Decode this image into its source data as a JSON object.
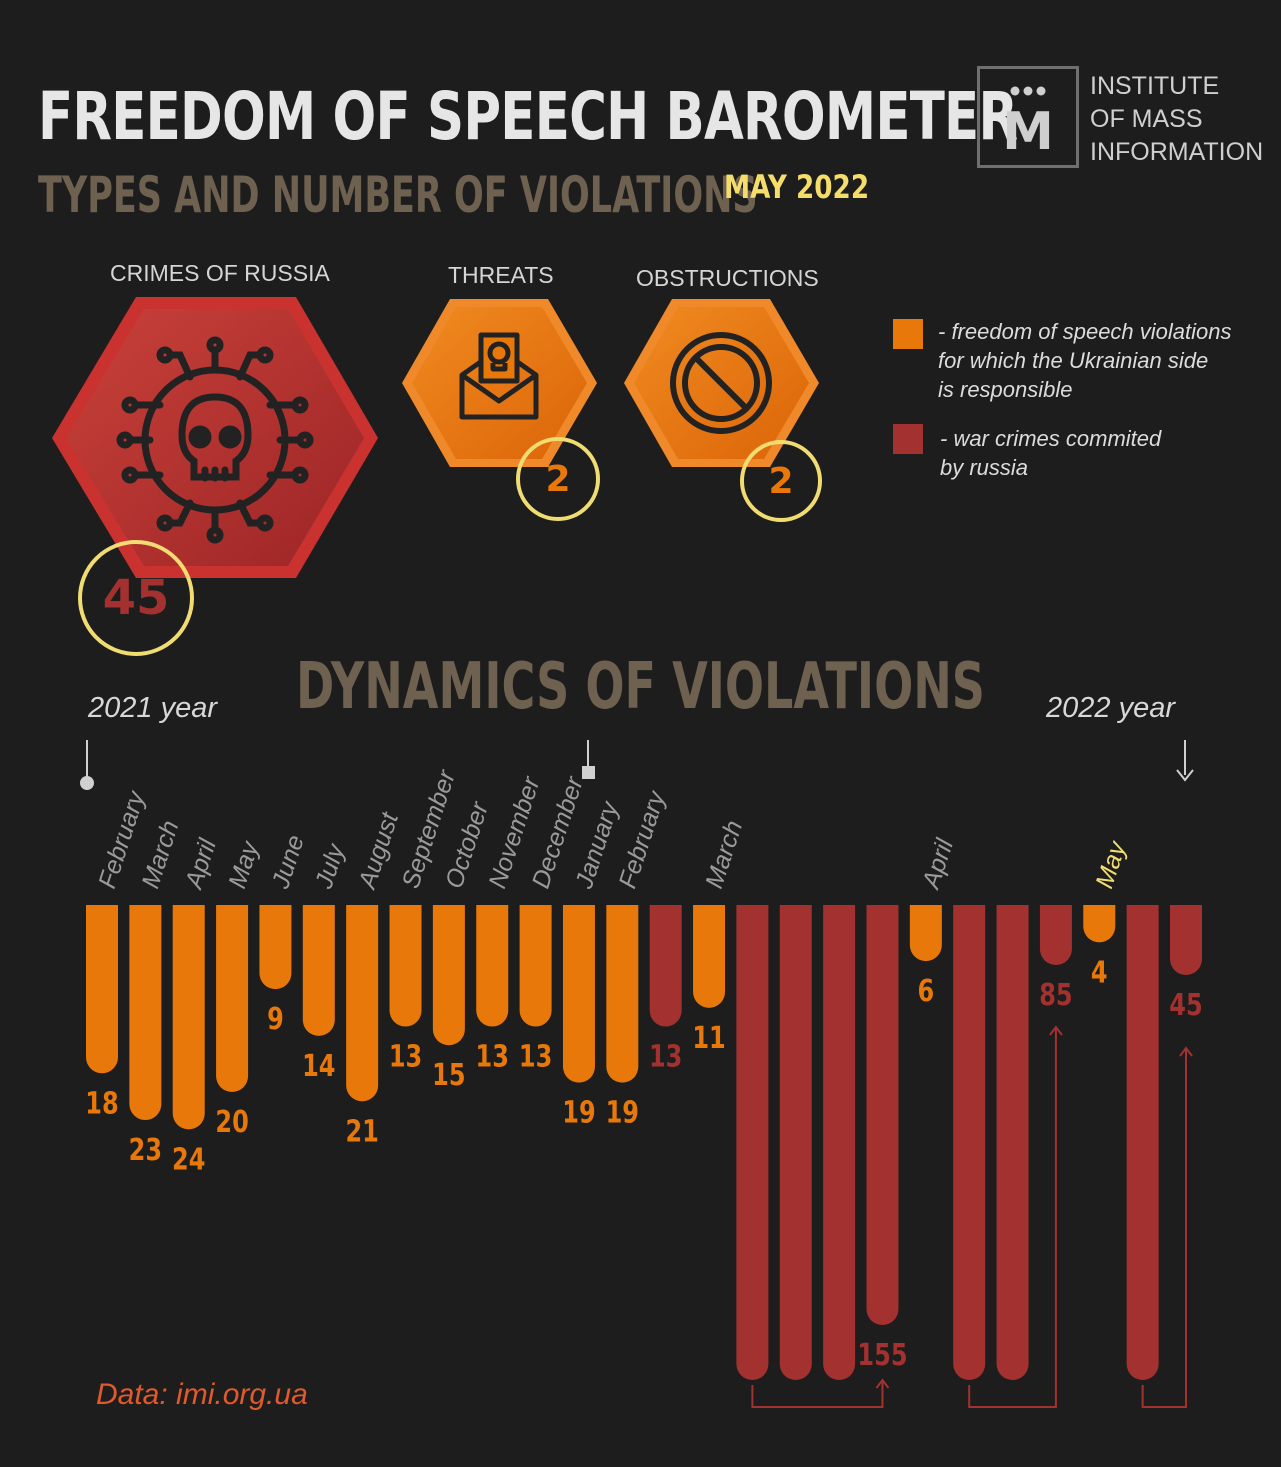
{
  "header": {
    "title": "FREEDOM OF SPEECH BAROMETER",
    "subtitle": "TYPES AND NUMBER OF VIOLATIONS",
    "period": "MAY 2022",
    "logo_letter": "M",
    "logo_lines": [
      "INSTITUTE",
      "OF MASS",
      "INFORMATION"
    ]
  },
  "categories": [
    {
      "label": "CRIMES OF RUSSIA",
      "value": "45",
      "icon": "skull-circuit-icon",
      "color": "#a3312f"
    },
    {
      "label": "THREATS",
      "value": "2",
      "icon": "threat-letter-icon",
      "color": "#e8780a"
    },
    {
      "label": "OBSTRUCTIONS",
      "value": "2",
      "icon": "prohibited-icon",
      "color": "#e8780a"
    }
  ],
  "legend": [
    {
      "color": "#e8780a",
      "lines": [
        "- freedom of speech violations",
        "for which the Ukrainian side",
        "is responsible"
      ]
    },
    {
      "color": "#a3312f",
      "lines": [
        "- war crimes commited",
        "by russia"
      ]
    }
  ],
  "colors": {
    "ukrainian": "#e8780a",
    "russia": "#a3312f",
    "highlight": "#f1dc72"
  },
  "chart_data": {
    "type": "bar",
    "title": "DYNAMICS OF VIOLATIONS",
    "year_labels": [
      "2021 year",
      "2022 year"
    ],
    "month_labels": [
      {
        "label": "February"
      },
      {
        "label": "March"
      },
      {
        "label": "April"
      },
      {
        "label": "May"
      },
      {
        "label": "June"
      },
      {
        "label": "July"
      },
      {
        "label": "August"
      },
      {
        "label": "September"
      },
      {
        "label": "October"
      },
      {
        "label": "November"
      },
      {
        "label": "December"
      },
      {
        "label": "January"
      },
      {
        "label": "February"
      },
      {
        "label": "March"
      },
      {
        "label": "April"
      },
      {
        "label": "May",
        "highlight": true
      }
    ],
    "bars": [
      {
        "month": "February 2021",
        "value": 18,
        "type": "ukrainian",
        "label": "18"
      },
      {
        "month": "March 2021",
        "value": 23,
        "type": "ukrainian",
        "label": "23"
      },
      {
        "month": "April 2021",
        "value": 24,
        "type": "ukrainian",
        "label": "24"
      },
      {
        "month": "May 2021",
        "value": 20,
        "type": "ukrainian",
        "label": "20"
      },
      {
        "month": "June 2021",
        "value": 9,
        "type": "ukrainian",
        "label": "9"
      },
      {
        "month": "July 2021",
        "value": 14,
        "type": "ukrainian",
        "label": "14"
      },
      {
        "month": "August 2021",
        "value": 21,
        "type": "ukrainian",
        "label": "21"
      },
      {
        "month": "September 2021",
        "value": 13,
        "type": "ukrainian",
        "label": "13"
      },
      {
        "month": "October 2021",
        "value": 15,
        "type": "ukrainian",
        "label": "15"
      },
      {
        "month": "November 2021",
        "value": 13,
        "type": "ukrainian",
        "label": "13"
      },
      {
        "month": "December 2021",
        "value": 13,
        "type": "ukrainian",
        "label": "13"
      },
      {
        "month": "January 2022",
        "value": 19,
        "type": "ukrainian",
        "label": "19"
      },
      {
        "month": "February 2022",
        "value": 19,
        "type": "ukrainian",
        "label": "19"
      },
      {
        "month": "February 2022",
        "value": 13,
        "type": "russia",
        "label": "13"
      },
      {
        "month": "March 2022",
        "value": 11,
        "type": "ukrainian",
        "label": "11"
      },
      {
        "month": "March 2022",
        "value": 155,
        "type": "russia",
        "label": ""
      },
      {
        "month": "March 2022",
        "value": 155,
        "type": "russia",
        "label": ""
      },
      {
        "month": "March 2022",
        "value": 155,
        "type": "russia",
        "label": ""
      },
      {
        "month": "March 2022",
        "value": 155,
        "type": "russia",
        "label": "155"
      },
      {
        "month": "April 2022",
        "value": 6,
        "type": "ukrainian",
        "label": "6"
      },
      {
        "month": "April 2022",
        "value": 85,
        "type": "russia",
        "label": ""
      },
      {
        "month": "April 2022",
        "value": 85,
        "type": "russia",
        "label": ""
      },
      {
        "month": "April 2022",
        "value": 85,
        "type": "russia",
        "label": "85"
      },
      {
        "month": "May 2022",
        "value": 4,
        "type": "ukrainian",
        "label": "4"
      },
      {
        "month": "May 2022",
        "value": 45,
        "type": "russia",
        "label": ""
      },
      {
        "month": "May 2022",
        "value": 45,
        "type": "russia",
        "label": "45"
      }
    ]
  },
  "source": "Data: imi.org.ua"
}
